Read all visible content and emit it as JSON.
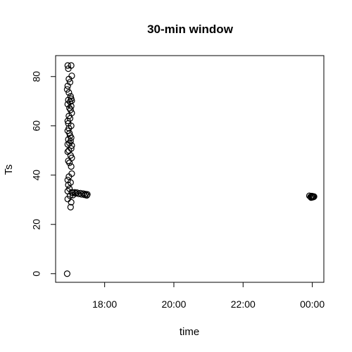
{
  "chart_data": {
    "type": "scatter",
    "title": "30-min window",
    "xlabel": "time",
    "ylabel": "Ts",
    "x_axis_kind": "time",
    "xlim": [
      "16:35",
      "00:20"
    ],
    "ylim": [
      -3.5,
      88.5
    ],
    "x_ticks": [
      {
        "label": "18:00",
        "value": "18:00"
      },
      {
        "label": "20:00",
        "value": "20:00"
      },
      {
        "label": "22:00",
        "value": "22:00"
      },
      {
        "label": "00:00",
        "value": "00:00"
      }
    ],
    "y_ticks": [
      0,
      20,
      40,
      60,
      80
    ],
    "grid": false,
    "legend": "none",
    "points": [
      {
        "x": "16:55",
        "y": 0
      },
      {
        "x": "16:56",
        "y": 84.5
      },
      {
        "x": "16:57",
        "y": 83.2
      },
      {
        "x": "17:02",
        "y": 84.5
      },
      {
        "x": "17:03",
        "y": 80.3
      },
      {
        "x": "16:58",
        "y": 79.0
      },
      {
        "x": "17:00",
        "y": 77.7
      },
      {
        "x": "16:56",
        "y": 76.2
      },
      {
        "x": "16:55",
        "y": 74.8
      },
      {
        "x": "16:58",
        "y": 73.5
      },
      {
        "x": "17:01",
        "y": 72.0
      },
      {
        "x": "17:02",
        "y": 71.0
      },
      {
        "x": "16:57",
        "y": 70.5
      },
      {
        "x": "17:00",
        "y": 69.8
      },
      {
        "x": "17:03",
        "y": 70.2
      },
      {
        "x": "16:56",
        "y": 68.8
      },
      {
        "x": "17:02",
        "y": 68.0
      },
      {
        "x": "16:59",
        "y": 67.2
      },
      {
        "x": "17:01",
        "y": 66.5
      },
      {
        "x": "17:03",
        "y": 65.2
      },
      {
        "x": "16:58",
        "y": 64.0
      },
      {
        "x": "17:00",
        "y": 63.0
      },
      {
        "x": "16:56",
        "y": 62.0
      },
      {
        "x": "16:57",
        "y": 61.0
      },
      {
        "x": "17:02",
        "y": 60.0
      },
      {
        "x": "16:58",
        "y": 59.0
      },
      {
        "x": "16:56",
        "y": 58.0
      },
      {
        "x": "16:59",
        "y": 57.0
      },
      {
        "x": "17:00",
        "y": 56.0
      },
      {
        "x": "17:02",
        "y": 55.2
      },
      {
        "x": "16:57",
        "y": 54.5
      },
      {
        "x": "17:01",
        "y": 53.8
      },
      {
        "x": "16:59",
        "y": 53.0
      },
      {
        "x": "16:56",
        "y": 52.5
      },
      {
        "x": "17:03",
        "y": 52.0
      },
      {
        "x": "17:02",
        "y": 50.8
      },
      {
        "x": "16:58",
        "y": 50.0
      },
      {
        "x": "16:56",
        "y": 49.5
      },
      {
        "x": "17:01",
        "y": 48.0
      },
      {
        "x": "17:03",
        "y": 47.0
      },
      {
        "x": "16:57",
        "y": 45.8
      },
      {
        "x": "16:59",
        "y": 45.0
      },
      {
        "x": "17:02",
        "y": 43.5
      },
      {
        "x": "17:03",
        "y": 40.6
      },
      {
        "x": "16:58",
        "y": 39.4
      },
      {
        "x": "16:56",
        "y": 38.0
      },
      {
        "x": "17:01",
        "y": 37.0
      },
      {
        "x": "16:57",
        "y": 36.0
      },
      {
        "x": "16:59",
        "y": 34.5
      },
      {
        "x": "16:56",
        "y": 33.5
      },
      {
        "x": "17:03",
        "y": 33.0
      },
      {
        "x": "17:05",
        "y": 32.8
      },
      {
        "x": "17:08",
        "y": 33.0
      },
      {
        "x": "17:10",
        "y": 32.6
      },
      {
        "x": "17:12",
        "y": 32.9
      },
      {
        "x": "17:15",
        "y": 32.4
      },
      {
        "x": "17:18",
        "y": 32.7
      },
      {
        "x": "17:20",
        "y": 32.2
      },
      {
        "x": "17:23",
        "y": 32.5
      },
      {
        "x": "17:25",
        "y": 32.0
      },
      {
        "x": "17:27",
        "y": 32.3
      },
      {
        "x": "17:29",
        "y": 31.8
      },
      {
        "x": "17:30",
        "y": 32.2
      },
      {
        "x": "17:05",
        "y": 31.9
      },
      {
        "x": "17:00",
        "y": 31.6
      },
      {
        "x": "16:56",
        "y": 30.3
      },
      {
        "x": "17:02",
        "y": 29.0
      },
      {
        "x": "17:01",
        "y": 27.0
      },
      {
        "x": "23:55",
        "y": 31.6
      },
      {
        "x": "23:57",
        "y": 31.2
      },
      {
        "x": "23:59",
        "y": 31.5
      },
      {
        "x": "00:00",
        "y": 31.0
      },
      {
        "x": "00:01",
        "y": 31.4
      },
      {
        "x": "00:02",
        "y": 31.1
      },
      {
        "x": "23:58",
        "y": 30.9
      },
      {
        "x": "00:03",
        "y": 31.3
      }
    ]
  }
}
